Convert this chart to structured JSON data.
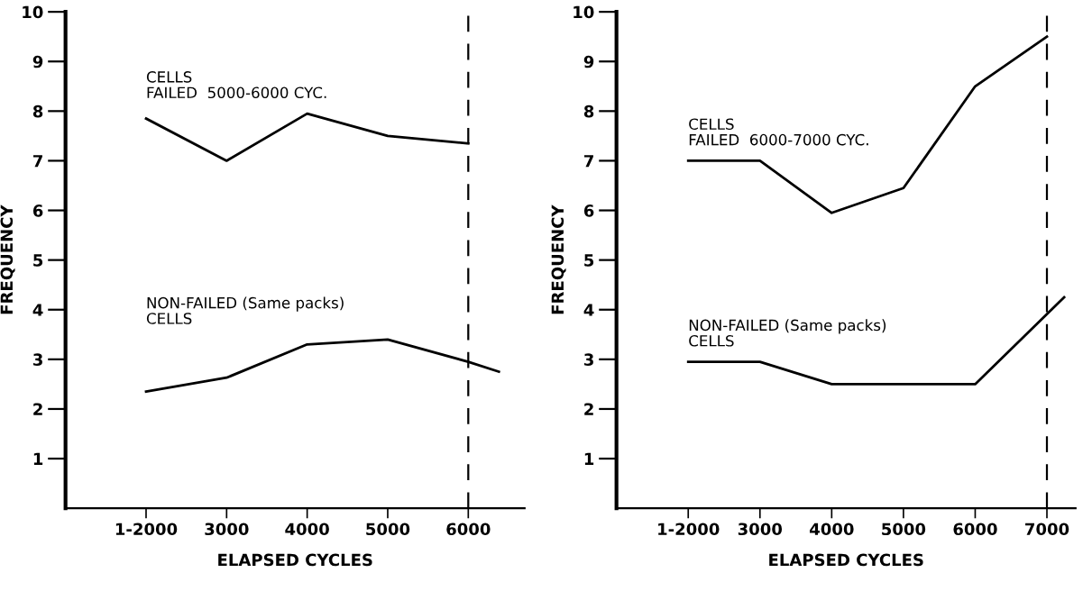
{
  "chart_data": [
    {
      "type": "line",
      "xlabel": "ELAPSED CYCLES",
      "ylabel": "FREQUENCY",
      "xlim": [
        1000,
        6700
      ],
      "ylim": [
        0,
        10
      ],
      "xticks": [
        {
          "value": 2000,
          "label": "1-2000"
        },
        3000,
        4000,
        5000,
        6000
      ],
      "yticks": [
        1,
        2,
        3,
        4,
        5,
        6,
        7,
        8,
        9,
        10
      ],
      "series": [
        {
          "name": "CELLS\nFAILED  5000-6000 CYC.",
          "color": "#000000",
          "x": [
            2000,
            3000,
            4000,
            5000,
            6000
          ],
          "values": [
            7.85,
            7.0,
            7.95,
            7.5,
            7.35
          ]
        },
        {
          "name": "NON-FAILED (Same packs)\nCELLS",
          "color": "#000000",
          "x": [
            2000,
            3000,
            4000,
            5000,
            6000,
            6380
          ],
          "values": [
            2.35,
            2.63,
            3.3,
            3.4,
            2.95,
            2.75
          ]
        }
      ],
      "ref_lines": [
        {
          "axis": "x",
          "value": 6000,
          "color": "#000000",
          "line_style": "dashed"
        }
      ],
      "grid": false,
      "legend": false
    },
    {
      "type": "line",
      "xlabel": "ELAPSED CYCLES",
      "ylabel": "FREQUENCY",
      "xlim": [
        1000,
        7400
      ],
      "ylim": [
        0,
        10
      ],
      "xticks": [
        {
          "value": 2000,
          "label": "1-2000"
        },
        3000,
        4000,
        5000,
        6000,
        7000
      ],
      "yticks": [
        1,
        2,
        3,
        4,
        5,
        6,
        7,
        8,
        9,
        10
      ],
      "series": [
        {
          "name": "CELLS\nFAILED  6000-7000 CYC.",
          "color": "#000000",
          "x": [
            2000,
            3000,
            4000,
            5000,
            6000,
            7000
          ],
          "values": [
            7.0,
            7.0,
            5.95,
            6.45,
            8.5,
            9.5
          ]
        },
        {
          "name": "NON-FAILED (Same packs)\nCELLS",
          "color": "#000000",
          "x": [
            2000,
            3000,
            4000,
            5000,
            6000,
            7240
          ],
          "values": [
            2.95,
            2.95,
            2.5,
            2.5,
            2.5,
            4.25
          ]
        }
      ],
      "ref_lines": [
        {
          "axis": "x",
          "value": 7000,
          "color": "#000000",
          "line_style": "dashed"
        }
      ],
      "grid": false,
      "legend": false
    }
  ]
}
